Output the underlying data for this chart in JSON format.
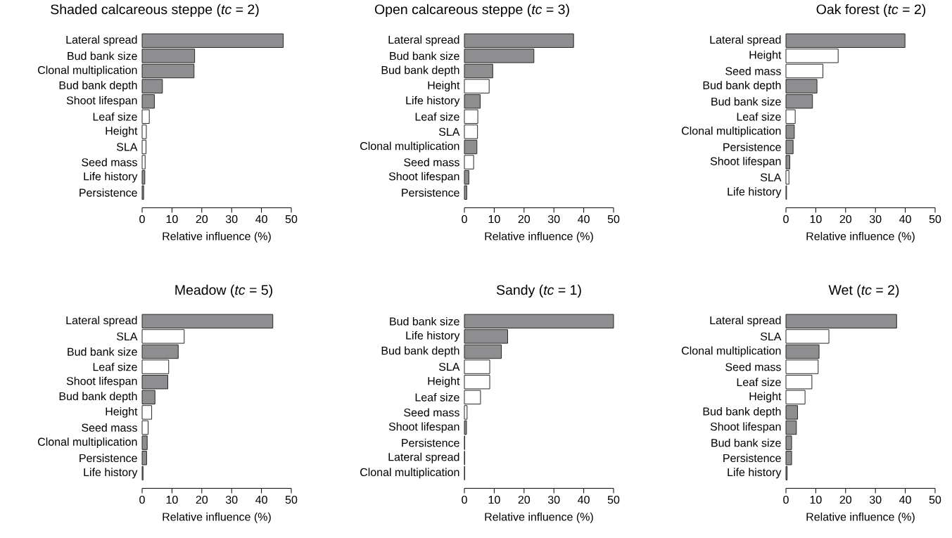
{
  "chart_data": [
    {
      "type": "bar",
      "orientation": "horizontal",
      "title": "Shaded calcareous steppe (*tc* = 2)",
      "xlabel": "Relative influence (%)",
      "categories": [
        "Lateral spread",
        "Bud bank size",
        "Clonal multiplication",
        "Bud bank depth",
        "Shoot lifespan",
        "Leaf size",
        "Height",
        "SLA",
        "Seed mass",
        "Life history",
        "Persistence"
      ],
      "values": [
        47.3,
        17.6,
        17.4,
        6.8,
        4.1,
        2.4,
        1.4,
        1.3,
        1.0,
        0.9,
        0.5
      ],
      "colors": [
        "#8e8e90",
        "#8e8e90",
        "#8e8e90",
        "#8e8e90",
        "#8e8e90",
        "#ffffff",
        "#ffffff",
        "#ffffff",
        "#ffffff",
        "#8e8e90",
        "#8e8e90"
      ],
      "xlim": [
        0,
        50
      ],
      "xticks": [
        0,
        10,
        20,
        30,
        40,
        50
      ]
    },
    {
      "type": "bar",
      "orientation": "horizontal",
      "title": "Open calcareous steppe (*tc* = 3)",
      "xlabel": "Relative influence (%)",
      "categories": [
        "Lateral spread",
        "Bud bank size",
        "Bud bank depth",
        "Height",
        "Life history",
        "Leaf size",
        "SLA",
        "Clonal multiplication",
        "Seed mass",
        "Shoot lifespan",
        "Persistence"
      ],
      "values": [
        36.6,
        23.3,
        9.5,
        8.3,
        5.3,
        4.5,
        4.4,
        4.2,
        3.1,
        1.5,
        0.8
      ],
      "colors": [
        "#8e8e90",
        "#8e8e90",
        "#8e8e90",
        "#ffffff",
        "#8e8e90",
        "#ffffff",
        "#ffffff",
        "#8e8e90",
        "#ffffff",
        "#8e8e90",
        "#8e8e90"
      ],
      "xlim": [
        0,
        50
      ],
      "xticks": [
        0,
        10,
        20,
        30,
        40,
        50
      ]
    },
    {
      "type": "bar",
      "orientation": "horizontal",
      "title": "Oak forest (*tc* = 2)",
      "xlabel": "Relative influence (%)",
      "categories": [
        "Lateral spread",
        "Height",
        "Seed mass",
        "Bud bank depth",
        "Bud bank size",
        "Leaf size",
        "Clonal multiplication",
        "Persistence",
        "Shoot lifespan",
        "SLA",
        "Life history"
      ],
      "values": [
        39.9,
        17.5,
        12.4,
        10.4,
        8.9,
        3.1,
        2.8,
        2.4,
        1.3,
        1.0,
        0.2
      ],
      "colors": [
        "#8e8e90",
        "#ffffff",
        "#ffffff",
        "#8e8e90",
        "#8e8e90",
        "#ffffff",
        "#8e8e90",
        "#8e8e90",
        "#8e8e90",
        "#ffffff",
        "#8e8e90"
      ],
      "xlim": [
        0,
        50
      ],
      "xticks": [
        0,
        10,
        20,
        30,
        40,
        50
      ]
    },
    {
      "type": "bar",
      "orientation": "horizontal",
      "title": "Meadow (*tc* = 5)",
      "xlabel": "Relative influence (%)",
      "categories": [
        "Lateral spread",
        "SLA",
        "Bud bank size",
        "Leaf size",
        "Shoot lifespan",
        "Bud bank depth",
        "Height",
        "Seed mass",
        "Clonal multiplication",
        "Persistence",
        "Life history"
      ],
      "values": [
        43.8,
        14.1,
        12.1,
        8.9,
        8.6,
        4.3,
        3.2,
        2.0,
        1.7,
        1.5,
        0.3
      ],
      "colors": [
        "#8e8e90",
        "#ffffff",
        "#8e8e90",
        "#ffffff",
        "#8e8e90",
        "#8e8e90",
        "#ffffff",
        "#ffffff",
        "#8e8e90",
        "#8e8e90",
        "#8e8e90"
      ],
      "xlim": [
        0,
        50
      ],
      "xticks": [
        0,
        10,
        20,
        30,
        40,
        50
      ]
    },
    {
      "type": "bar",
      "orientation": "horizontal",
      "title": "Sandy (*tc* = 1)",
      "xlabel": "Relative influence (%)",
      "categories": [
        "Bud bank size",
        "Life history",
        "Bud bank depth",
        "SLA",
        "Height",
        "Leaf size",
        "Seed mass",
        "Shoot lifespan",
        "Persistence",
        "Lateral spread",
        "Clonal multiplication"
      ],
      "values": [
        50.0,
        14.5,
        12.4,
        8.5,
        8.5,
        5.4,
        0.9,
        0.7,
        0.1,
        0.1,
        0.1
      ],
      "colors": [
        "#8e8e90",
        "#8e8e90",
        "#8e8e90",
        "#ffffff",
        "#ffffff",
        "#ffffff",
        "#ffffff",
        "#8e8e90",
        "#8e8e90",
        "#8e8e90",
        "#8e8e90"
      ],
      "xlim": [
        0,
        50
      ],
      "xticks": [
        0,
        10,
        20,
        30,
        40,
        50
      ]
    },
    {
      "type": "bar",
      "orientation": "horizontal",
      "title": "Wet (*tc* = 2)",
      "xlabel": "Relative influence (%)",
      "categories": [
        "Lateral spread",
        "SLA",
        "Clonal multiplication",
        "Seed mass",
        "Leaf size",
        "Height",
        "Bud bank depth",
        "Shoot lifespan",
        "Bud bank size",
        "Persistence",
        "Life history"
      ],
      "values": [
        37.1,
        14.4,
        11.1,
        10.8,
        8.7,
        6.4,
        3.9,
        3.5,
        1.9,
        1.9,
        0.4
      ],
      "colors": [
        "#8e8e90",
        "#ffffff",
        "#8e8e90",
        "#ffffff",
        "#ffffff",
        "#ffffff",
        "#8e8e90",
        "#8e8e90",
        "#8e8e90",
        "#8e8e90",
        "#8e8e90"
      ],
      "xlim": [
        0,
        50
      ],
      "xticks": [
        0,
        10,
        20,
        30,
        40,
        50
      ]
    }
  ]
}
